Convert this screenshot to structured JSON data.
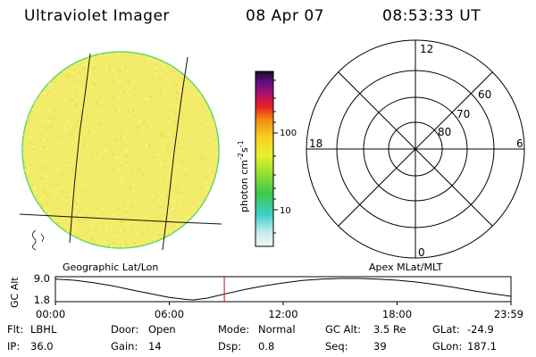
{
  "header": {
    "title": "Ultraviolet Imager",
    "date": "08 Apr 07",
    "time": "08:53:33 UT"
  },
  "colorbar": {
    "label": "photon cm",
    "label_exp1": "-2",
    "label_mid": "s",
    "label_exp2": "-1",
    "ticks": [
      "100",
      "10"
    ]
  },
  "polar": {
    "mlt_labels": {
      "top": "12",
      "left": "18",
      "right": "6",
      "bottom": "0"
    },
    "lat_labels": [
      "60",
      "70",
      "80"
    ]
  },
  "image_labels": {
    "left": "Geographic Lat/Lon",
    "right": "Apex MLat/MLT"
  },
  "chart_data": {
    "type": "line",
    "ylabel": "GC Alt",
    "yticks": [
      "9.0",
      "1.8"
    ],
    "ylim": [
      1.8,
      9.0
    ],
    "xlim": [
      0,
      24
    ],
    "xticks": [
      "00:00",
      "06:00",
      "12:00",
      "18:00",
      "23:59"
    ],
    "x": [
      0,
      1,
      2,
      3,
      4,
      5,
      6,
      7,
      7.3,
      8,
      9,
      10,
      11,
      12,
      13,
      14,
      15,
      16,
      17,
      18,
      19,
      20,
      21,
      22,
      23,
      24
    ],
    "y": [
      8.8,
      8.4,
      7.6,
      6.5,
      5.2,
      3.9,
      2.6,
      1.9,
      1.8,
      2.4,
      3.9,
      5.3,
      6.5,
      7.5,
      8.3,
      8.8,
      9.0,
      9.0,
      8.8,
      8.4,
      7.8,
      7.0,
      6.0,
      4.9,
      3.9,
      3.0
    ],
    "current_time": 8.9
  },
  "footer": {
    "rows": [
      [
        {
          "label": "Flt:",
          "value": "LBHL"
        },
        {
          "label": "Door:",
          "value": "Open"
        },
        {
          "label": "Mode:",
          "value": "Normal"
        },
        {
          "label": "GC Alt:",
          "value": "3.5 Re"
        },
        {
          "label": "GLat:",
          "value": "-24.9"
        }
      ],
      [
        {
          "label": "IP:",
          "value": "36.0"
        },
        {
          "label": "Gain:",
          "value": "14"
        },
        {
          "label": "Dsp:",
          "value": "0.8"
        },
        {
          "label": "Seq:",
          "value": "39"
        },
        {
          "label": "GLon:",
          "value": "187.1"
        }
      ]
    ]
  },
  "colors": {
    "disk_fill": "#f2ec6a",
    "disk_edge": "#62d86a",
    "marker": "#cc3333"
  }
}
